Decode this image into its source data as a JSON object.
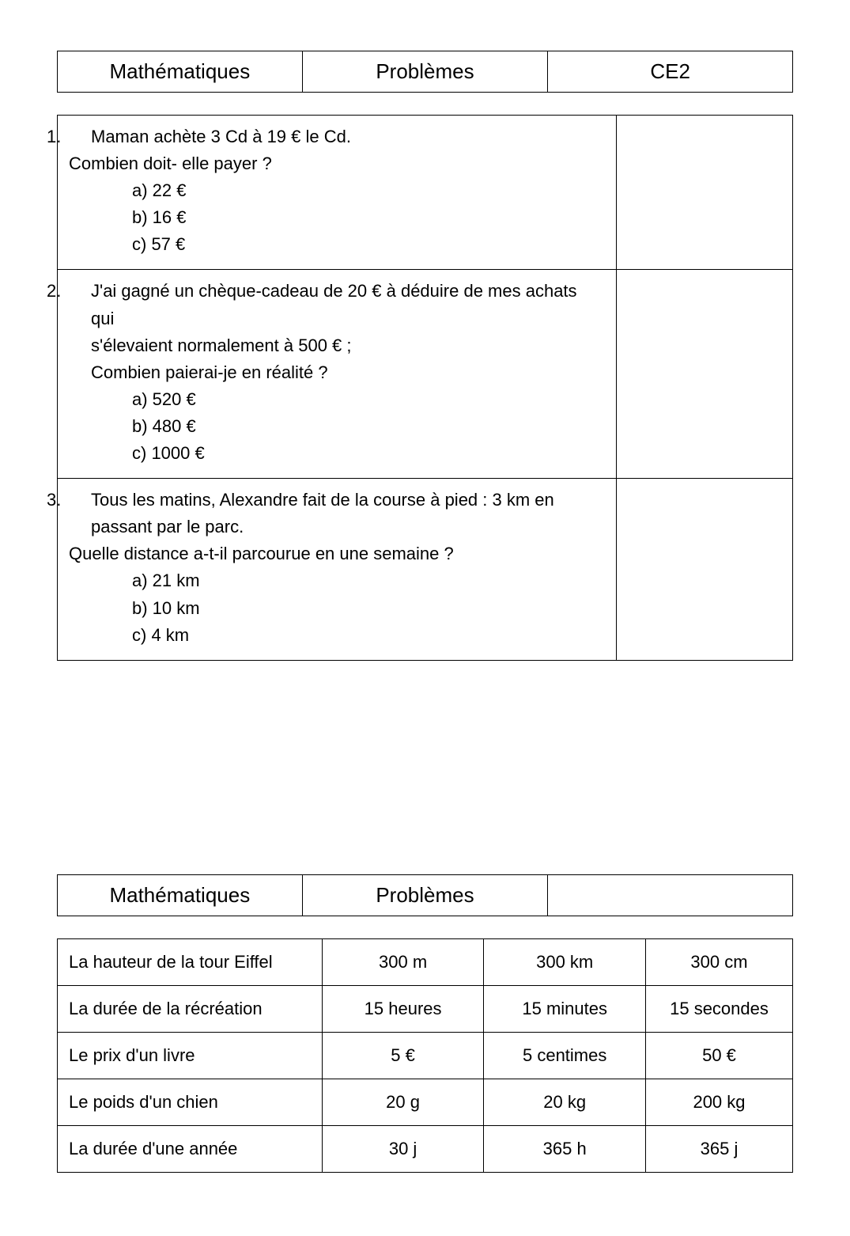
{
  "header1": {
    "left": "Mathématiques",
    "mid": "Problèmes",
    "right": "CE2"
  },
  "questions": [
    {
      "num": "1.",
      "lines": [
        "Maman achète 3 Cd  à 19 € le Cd."
      ],
      "sub": "Combien doit- elle payer ?",
      "opts": [
        "a)  22 €",
        "b)  16 €",
        "c)  57 €"
      ]
    },
    {
      "num": "2.",
      "lines": [
        "J'ai gagné un chèque-cadeau de 20 € à déduire de mes achats qui",
        "s'élevaient normalement à 500 € ;"
      ],
      "sub": "Combien paierai-je en réalité ?",
      "opts": [
        "a)  520 €",
        "b)  480 €",
        "c)  1000 €"
      ]
    },
    {
      "num": "3.",
      "lines": [
        "Tous les matins, Alexandre fait de la course à pied : 3 km en",
        "passant par le parc."
      ],
      "sub": "Quelle distance a-t-il parcourue en une semaine ?",
      "opts": [
        "a)  21 km",
        "b)  10 km",
        "c)  4 km"
      ]
    }
  ],
  "header2": {
    "left": "Mathématiques",
    "mid": "Problèmes"
  },
  "grid": {
    "rows": [
      {
        "label": "La hauteur de la tour Eiffel",
        "c1": "300 m",
        "c2": "300 km",
        "c3": "300 cm"
      },
      {
        "label": "La durée de la récréation",
        "c1": "15 heures",
        "c2": "15 minutes",
        "c3": "15 secondes"
      },
      {
        "label": "Le prix d'un livre",
        "c1": "5 €",
        "c2": "5 centimes",
        "c3": "50 €"
      },
      {
        "label": "Le poids d'un chien",
        "c1": "20 g",
        "c2": "20 kg",
        "c3": "200 kg"
      },
      {
        "label": "La durée d'une année",
        "c1": "30 j",
        "c2": "365 h",
        "c3": "365 j"
      }
    ]
  }
}
